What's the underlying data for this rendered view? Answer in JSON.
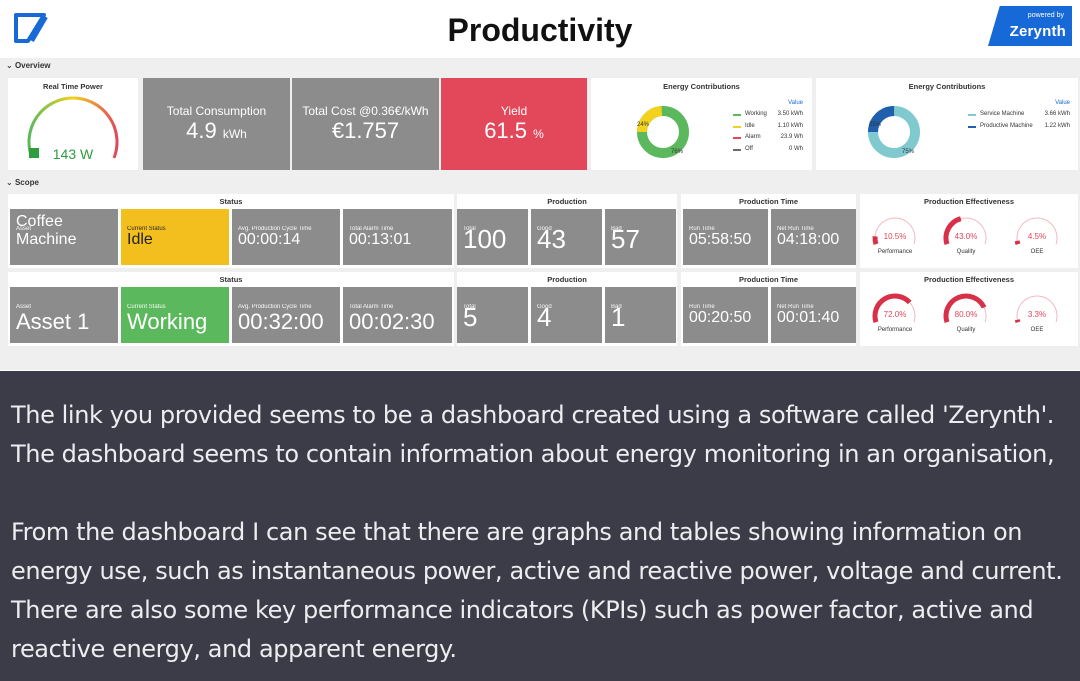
{
  "header": {
    "title": "Productivity",
    "powered_by": "powered by",
    "brand": "Zerynth"
  },
  "sections": {
    "overview": "Overview",
    "scope": "Scope"
  },
  "overview": {
    "realtime": {
      "title": "Real Time Power",
      "value": "143 W",
      "level": 0.45
    },
    "consumption": {
      "label": "Total Consumption",
      "value": "4.9",
      "unit": "kWh"
    },
    "cost": {
      "label": "Total Cost @0.36€/kWh",
      "value": "€1.757"
    },
    "yield": {
      "label": "Yield",
      "value": "61.5",
      "unit": "%"
    },
    "energy1": {
      "title": "Energy Contributions",
      "value_header": "Value",
      "items": [
        {
          "name": "Working",
          "value": "3.50 kWh",
          "color": "#5bb85c"
        },
        {
          "name": "Idle",
          "value": "1.10 kWh",
          "color": "#f3d21e"
        },
        {
          "name": "Alarm",
          "value": "23.9 Wh",
          "color": "#e2475a"
        },
        {
          "name": "Off",
          "value": "0 Wh",
          "color": "#6b6b6b"
        }
      ],
      "donut_labels": [
        "24%",
        "76%"
      ]
    },
    "energy2": {
      "title": "Energy Contributions",
      "value_header": "Value",
      "items": [
        {
          "name": "Service Machine",
          "value": "3.66 kWh",
          "color": "#7fc9cf"
        },
        {
          "name": "Productive Machine",
          "value": "1.22 kWh",
          "color": "#1f5fae"
        }
      ],
      "donut_labels": [
        "25%",
        "75%"
      ]
    }
  },
  "scope": [
    {
      "status_title": "Status",
      "production_title": "Production",
      "time_title": "Production Time",
      "eff_title": "Production Effectiveness",
      "asset_label": "Asset",
      "asset": "Coffee Machine",
      "current_status_label": "Current Status",
      "current_status": "Idle",
      "cycle_label": "Avg. Production Cycle Time",
      "cycle": "00:00:14",
      "alarm_label": "Total Alarm Time",
      "alarm": "00:13:01",
      "total_label": "Total",
      "total": "100",
      "good_label": "Good",
      "good": "43",
      "bad_label": "Bad",
      "bad": "57",
      "run_label": "Run Time",
      "run": "05:58:50",
      "net_label": "Net Run Time",
      "net": "04:18:00",
      "performance": "10.5%",
      "quality": "43.0%",
      "oee": "4.5%",
      "performance_label": "Performance",
      "quality_label": "Quality",
      "oee_label": "OEE",
      "performance_level": 0.105,
      "quality_level": 0.43,
      "oee_level": 0.045
    },
    {
      "status_title": "Status",
      "production_title": "Production",
      "time_title": "Production Time",
      "eff_title": "Production Effectiveness",
      "asset_label": "Asset",
      "asset": "Asset 1",
      "current_status_label": "Current Status",
      "current_status": "Working",
      "cycle_label": "Avg. Production Cycle Time",
      "cycle": "00:32:00",
      "alarm_label": "Total Alarm Time",
      "alarm": "00:02:30",
      "total_label": "Total",
      "total": "5",
      "good_label": "Good",
      "good": "4",
      "bad_label": "Bad",
      "bad": "1",
      "run_label": "Run Time",
      "run": "00:20:50",
      "net_label": "Net Run Time",
      "net": "00:01:40",
      "performance": "72.0%",
      "quality": "80.0%",
      "oee": "3.3%",
      "performance_label": "Performance",
      "quality_label": "Quality",
      "oee_label": "OEE",
      "performance_level": 0.72,
      "quality_level": 0.8,
      "oee_level": 0.033
    }
  ],
  "chat": {
    "p1": "The link you provided seems to be a dashboard created using a software called 'Zerynth'. The dashboard seems to contain information about energy monitoring in an organisation,",
    "p2": "From the dashboard I can see that there are graphs and tables showing information on energy use, such as instantaneous power, active and reactive power, voltage and current. There are also some key performance indicators (KPIs) such as power factor, active and reactive energy, and apparent energy."
  }
}
